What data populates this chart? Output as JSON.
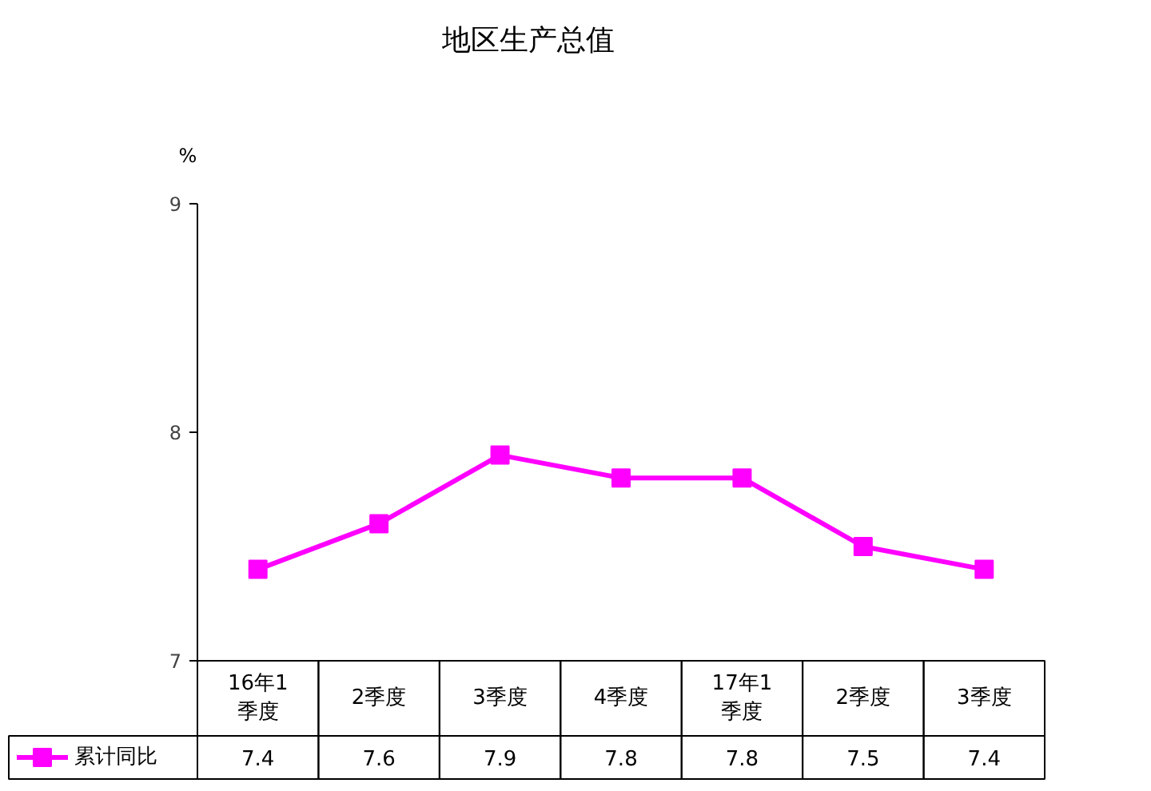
{
  "chart_data": {
    "type": "line",
    "title": "地区生产总值",
    "ylabel": "%",
    "categories": [
      "16年1季度",
      "2季度",
      "3季度",
      "4季度",
      "17年1季度",
      "2季度",
      "3季度"
    ],
    "series": [
      {
        "name": "累计同比",
        "color": "#ff00ff",
        "values": [
          7.4,
          7.6,
          7.9,
          7.8,
          7.8,
          7.5,
          7.4
        ]
      }
    ],
    "ylim": [
      7,
      9
    ],
    "yticks": [
      7,
      8,
      9
    ],
    "marker": "square",
    "line_style": "solid",
    "data_labels": true,
    "legend": "bottom",
    "grid": false
  }
}
